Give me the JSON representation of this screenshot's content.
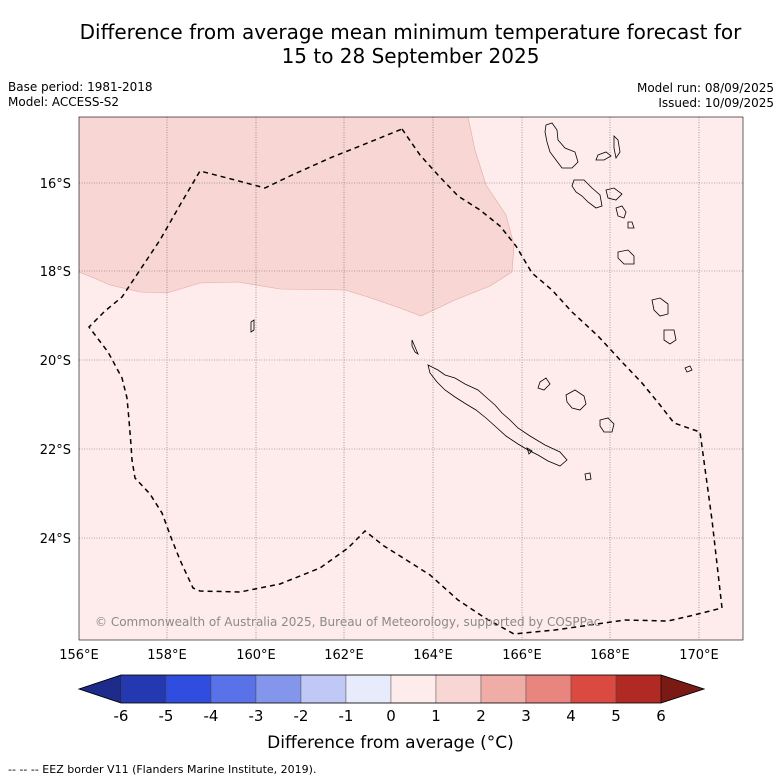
{
  "header": {
    "title_line1": "Difference from average mean minimum temperature forecast for",
    "title_line2": "15 to 28 September 2025",
    "base_period": "Base period: 1981-2018",
    "model": "Model: ACCESS-S2",
    "model_run": "Model run: 08/09/2025",
    "issued": "Issued: 10/09/2025"
  },
  "map": {
    "region": "New Caledonia",
    "lon_ticks": [
      "156°E",
      "158°E",
      "160°E",
      "162°E",
      "164°E",
      "166°E",
      "168°E",
      "170°E"
    ],
    "lat_ticks": [
      "16°S",
      "18°S",
      "20°S",
      "22°S",
      "24°S"
    ],
    "copyright": "© Commonwealth of Australia 2025, Bureau of Meteorology, supported by COSPPac",
    "colors": {
      "anomaly_0_to_1": "#fdeceb",
      "anomaly_1_to_2": "#f7d6d4",
      "coastline": "#000000",
      "eez_border": "#000000",
      "grid": "#555555"
    }
  },
  "colorbar": {
    "labels": [
      "-6",
      "-5",
      "-4",
      "-3",
      "-2",
      "-1",
      "0",
      "1",
      "2",
      "3",
      "4",
      "5",
      "6"
    ],
    "colors": [
      "#1d2b8a",
      "#2438b0",
      "#2f4ee0",
      "#5a72e8",
      "#8496ec",
      "#c0c8f5",
      "#e8ebfb",
      "#fdeceb",
      "#f7d6d4",
      "#f0aca7",
      "#e8857e",
      "#db4a40",
      "#b02922",
      "#7a1a14"
    ],
    "title": "Difference from average (°C)"
  },
  "legend": {
    "eez": "-- -- -- EEZ border V11 (Flanders Marine Institute, 2019)."
  }
}
